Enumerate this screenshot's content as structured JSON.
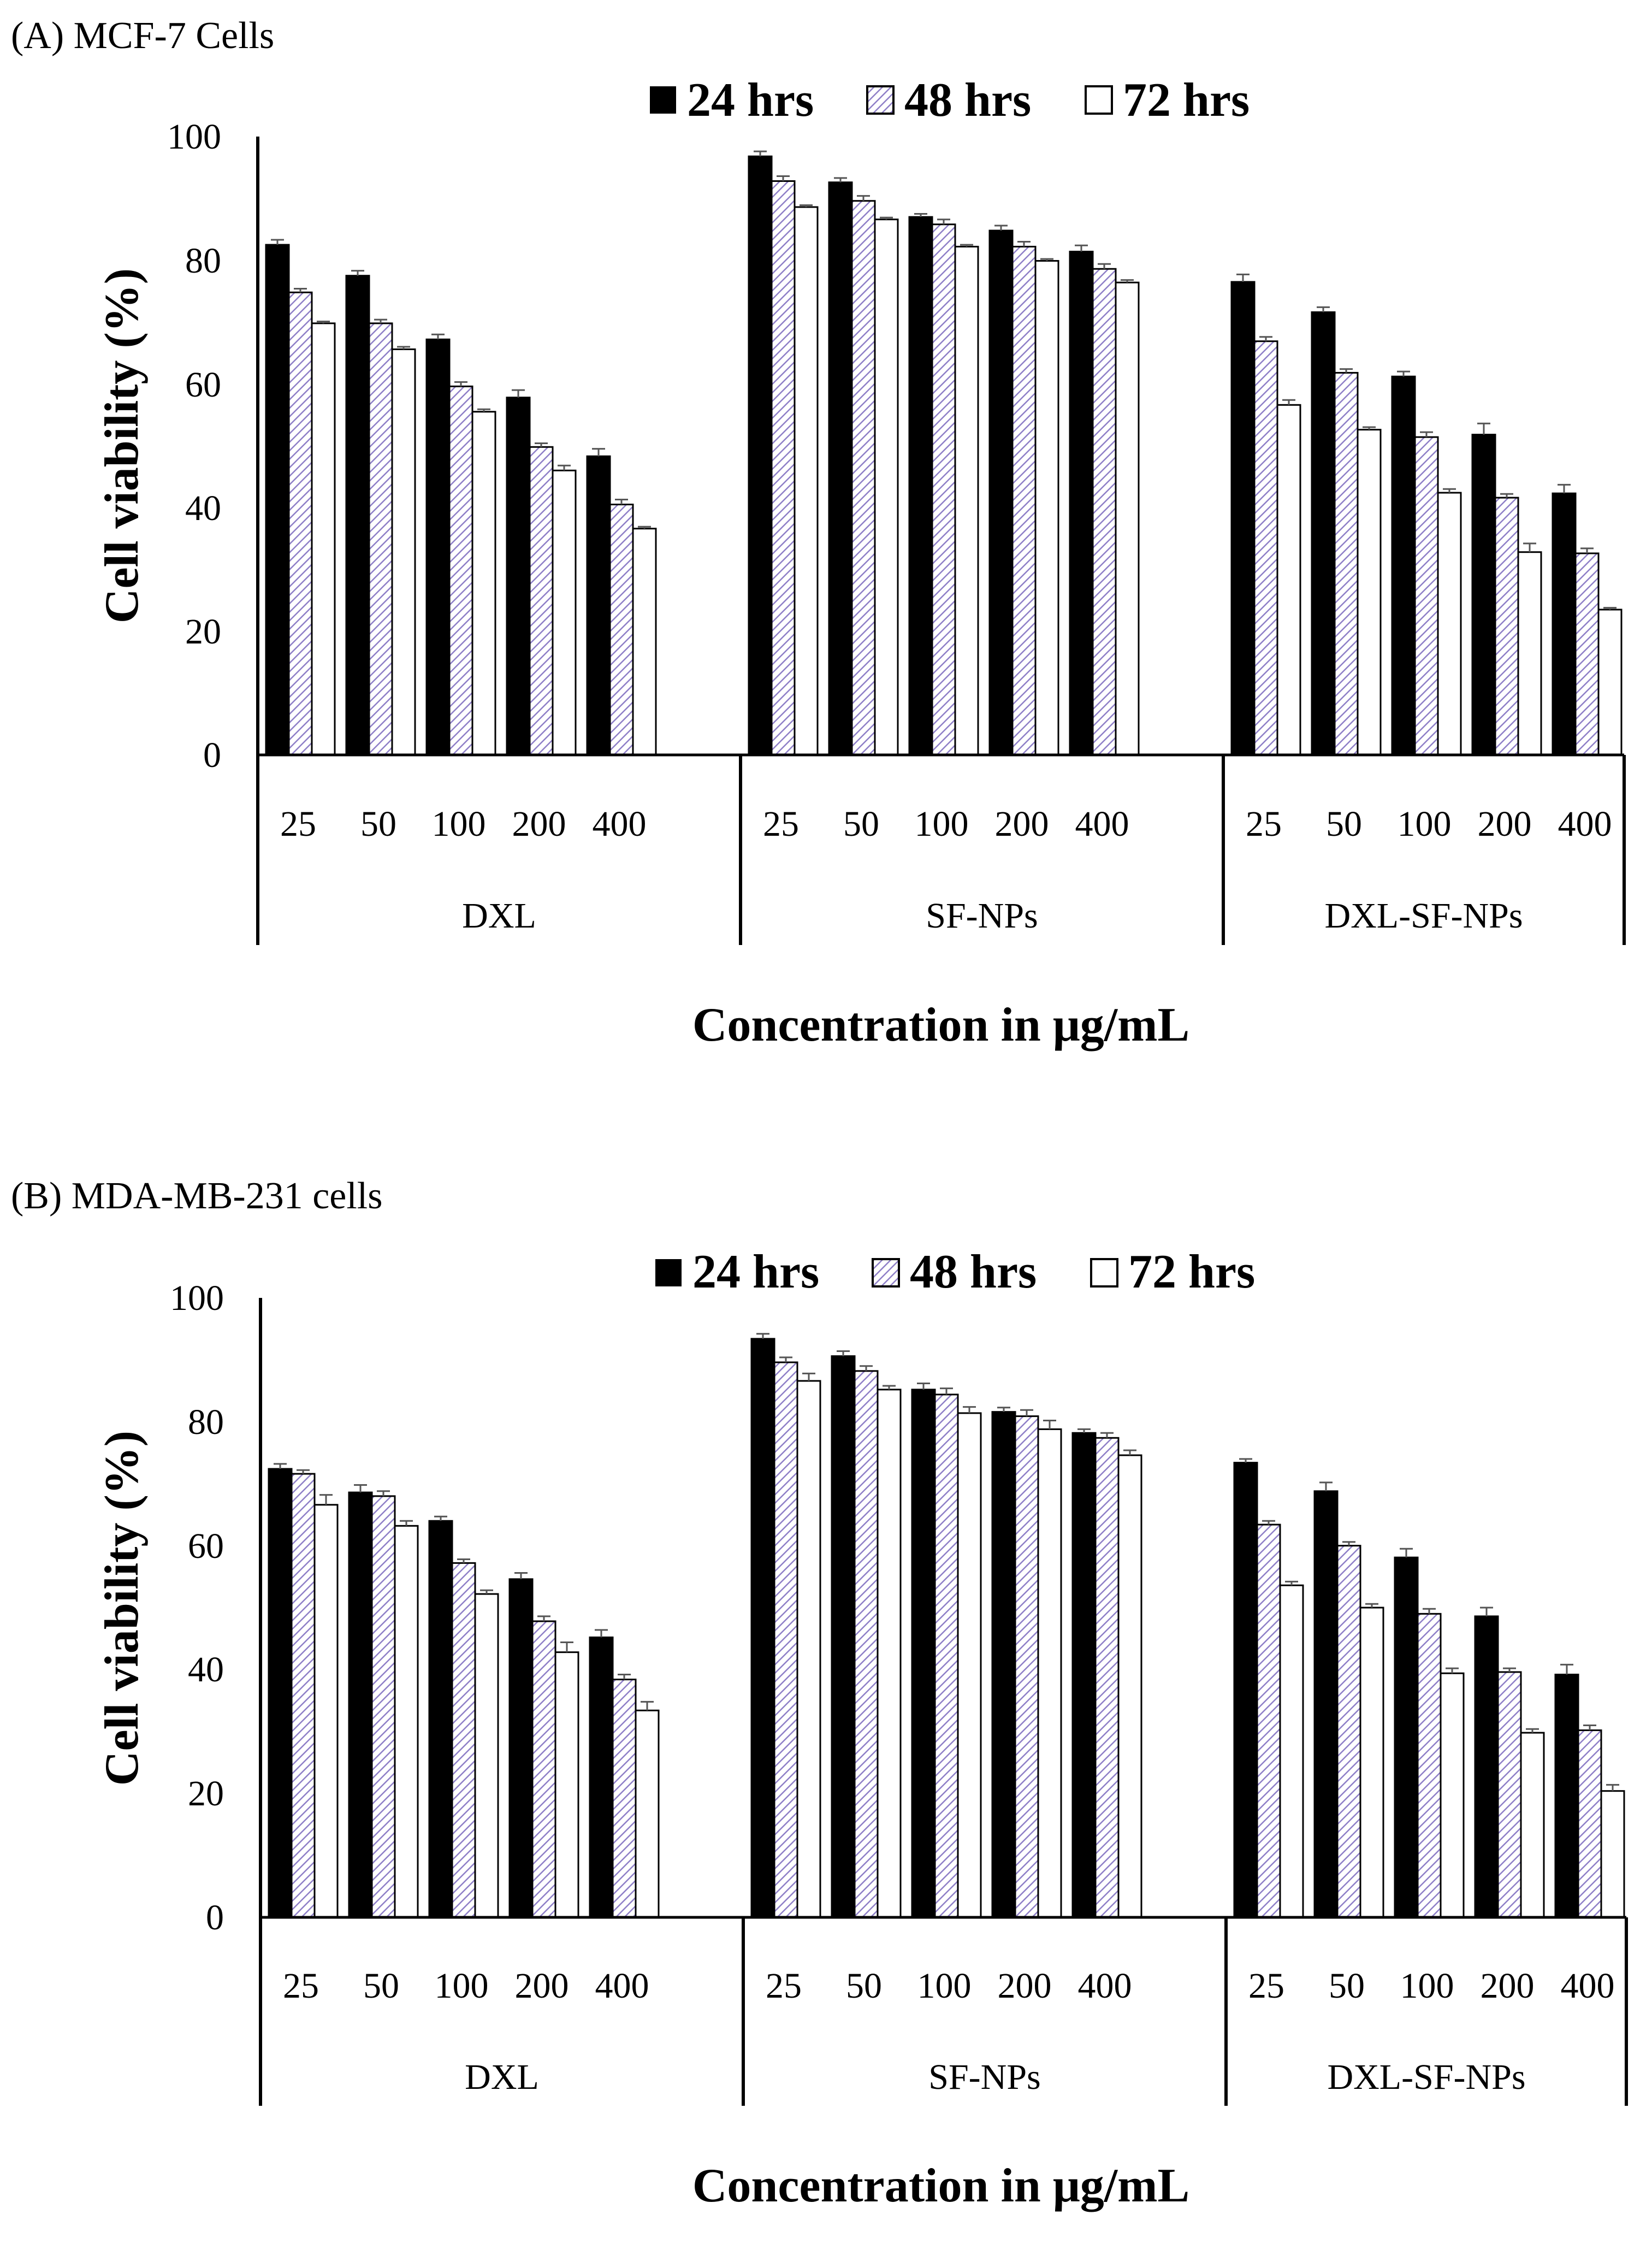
{
  "chart_data": [
    {
      "type": "bar",
      "title": "(A) MCF-7 Cells",
      "ylabel": "Cell viability (%)",
      "xlabel": "Concentration in μg/mL",
      "ylim": [
        0,
        100
      ],
      "yticks": [
        "0",
        "20",
        "40",
        "60",
        "80",
        "100"
      ],
      "groups": [
        "DXL",
        "SF-NPs",
        "DXL-SF-NPs"
      ],
      "categories": [
        "25",
        "50",
        "100",
        "200",
        "400"
      ],
      "legend_position": "top-right",
      "series": [
        {
          "name": "24 hrs",
          "values": [
            [
              82.5,
              77.5,
              67.2,
              57.8,
              48.3
            ],
            [
              96.8,
              92.6,
              87.0,
              84.8,
              81.4
            ],
            [
              76.5,
              71.6,
              61.2,
              51.8,
              42.3
            ]
          ],
          "errors": [
            [
              0.8,
              0.8,
              0.8,
              1.2,
              1.2
            ],
            [
              0.8,
              0.7,
              0.5,
              0.8,
              1.0
            ],
            [
              1.2,
              0.8,
              0.8,
              1.8,
              1.4
            ]
          ]
        },
        {
          "name": "48 hrs",
          "values": [
            [
              74.8,
              69.8,
              59.6,
              49.8,
              40.5
            ],
            [
              92.8,
              89.6,
              85.8,
              82.2,
              78.6
            ],
            [
              66.9,
              61.8,
              51.4,
              41.6,
              32.6
            ]
          ],
          "errors": [
            [
              0.6,
              0.6,
              0.7,
              0.6,
              0.8
            ],
            [
              0.8,
              0.8,
              0.8,
              0.8,
              0.8
            ],
            [
              0.7,
              0.6,
              0.8,
              0.6,
              0.8
            ]
          ]
        },
        {
          "name": "72 hrs",
          "values": [
            [
              69.8,
              65.6,
              55.5,
              46.0,
              36.6
            ],
            [
              88.6,
              86.6,
              82.2,
              79.9,
              76.4
            ],
            [
              56.6,
              52.6,
              42.4,
              32.8,
              23.5
            ]
          ],
          "errors": [
            [
              0.3,
              0.4,
              0.4,
              0.8,
              0.3
            ],
            [
              0.3,
              0.3,
              0.3,
              0.3,
              0.4
            ],
            [
              0.8,
              0.4,
              0.6,
              1.4,
              0.3
            ]
          ]
        }
      ]
    },
    {
      "type": "bar",
      "title": "(B) MDA-MB-231 cells",
      "ylabel": "Cell viability (%)",
      "xlabel": "Concentration in μg/mL",
      "ylim": [
        0,
        100
      ],
      "yticks": [
        "0",
        "20",
        "40",
        "60",
        "80",
        "100"
      ],
      "groups": [
        "DXL",
        "SF-NPs",
        "DXL-SF-NPs"
      ],
      "categories": [
        "25",
        "50",
        "100",
        "200",
        "400"
      ],
      "legend_position": "top-right",
      "series": [
        {
          "name": "24 hrs",
          "values": [
            [
              72.4,
              68.6,
              64.0,
              54.6,
              45.2
            ],
            [
              93.4,
              90.6,
              85.2,
              81.6,
              78.2
            ],
            [
              73.4,
              68.8,
              58.1,
              48.6,
              39.2
            ]
          ],
          "errors": [
            [
              0.8,
              1.2,
              0.7,
              1.0,
              1.2
            ],
            [
              0.8,
              0.8,
              1.0,
              0.7,
              0.6
            ],
            [
              0.6,
              1.4,
              1.4,
              1.4,
              1.6
            ]
          ]
        },
        {
          "name": "48 hrs",
          "values": [
            [
              71.6,
              68.0,
              57.2,
              47.8,
              38.4
            ],
            [
              89.6,
              88.2,
              84.4,
              80.9,
              77.4
            ],
            [
              63.4,
              60.0,
              49.0,
              39.6,
              30.2
            ]
          ],
          "errors": [
            [
              0.6,
              0.8,
              0.6,
              0.8,
              0.8
            ],
            [
              0.8,
              0.8,
              1.0,
              1.0,
              0.8
            ],
            [
              0.6,
              0.6,
              0.8,
              0.6,
              0.8
            ]
          ]
        },
        {
          "name": "72 hrs",
          "values": [
            [
              66.6,
              63.2,
              52.2,
              42.8,
              33.4
            ],
            [
              86.6,
              85.2,
              81.4,
              78.8,
              74.6
            ],
            [
              53.6,
              50.0,
              39.4,
              29.8,
              20.4
            ]
          ],
          "errors": [
            [
              1.6,
              0.8,
              0.6,
              1.6,
              1.4
            ],
            [
              1.2,
              0.6,
              1.0,
              1.4,
              0.8
            ],
            [
              0.6,
              0.6,
              0.8,
              0.6,
              1.0
            ]
          ]
        }
      ]
    }
  ]
}
